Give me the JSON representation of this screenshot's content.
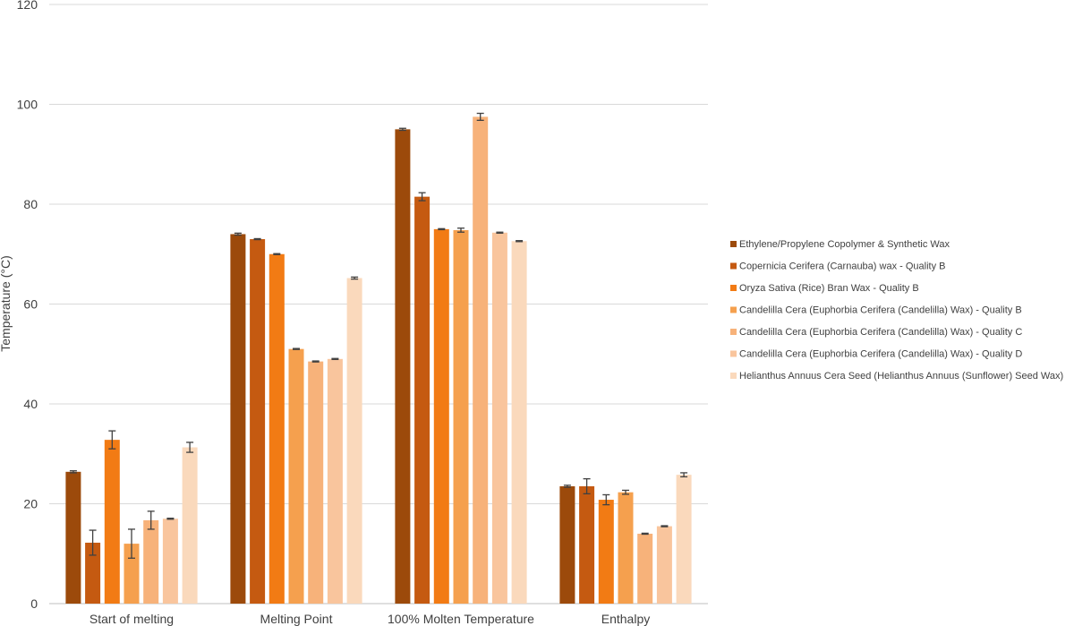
{
  "chart_data": {
    "type": "bar",
    "title": "",
    "xlabel": "",
    "ylabel": "Temperature (°C)",
    "ylim": [
      0,
      120
    ],
    "yticks": [
      0,
      20,
      40,
      60,
      80,
      100,
      120
    ],
    "grid": true,
    "legend_position": "right",
    "error_bars": true,
    "categories": [
      "Start of melting",
      "Melting Point",
      "100% Molten Temperature",
      "Enthalpy"
    ],
    "series": [
      {
        "name": "Ethylene/Propylene Copolymer & Synthetic Wax",
        "color": "#9c4a0b",
        "values": [
          26.4,
          74.0,
          95.0,
          23.5
        ],
        "errors": [
          0.2,
          0.2,
          0.2,
          0.2
        ]
      },
      {
        "name": "Copernicia Cerifera (Carnauba) wax - Quality B",
        "color": "#c55a11",
        "values": [
          12.2,
          73.0,
          81.5,
          23.5
        ],
        "errors": [
          2.5,
          0.1,
          0.8,
          1.5
        ]
      },
      {
        "name": "Oryza Sativa (Rice) Bran Wax - Quality B",
        "color": "#f27b14",
        "values": [
          32.8,
          70.0,
          75.0,
          20.8
        ],
        "errors": [
          1.8,
          0.1,
          0.1,
          1.0
        ]
      },
      {
        "name": "Candelilla Cera (Euphorbia Cerifera (Candelilla) Wax) - Quality B",
        "color": "#f5a04e",
        "values": [
          12.0,
          51.0,
          74.8,
          22.3
        ],
        "errors": [
          2.9,
          0.1,
          0.4,
          0.4
        ]
      },
      {
        "name": "Candelilla Cera (Euphorbia Cerifera (Candelilla) Wax) - Quality C",
        "color": "#f7b27a",
        "values": [
          16.7,
          48.5,
          97.5,
          14.0
        ],
        "errors": [
          1.8,
          0.1,
          0.7,
          0.1
        ]
      },
      {
        "name": "Candelilla Cera (Euphorbia Cerifera (Candelilla) Wax) - Quality D",
        "color": "#f9c59d",
        "values": [
          17.0,
          49.0,
          74.3,
          15.5
        ],
        "errors": [
          0.1,
          0.1,
          0.1,
          0.1
        ]
      },
      {
        "name": "Helianthus Annuus Cera Seed (Helianthus Annuus (Sunflower) Seed Wax)",
        "color": "#fad9bc",
        "values": [
          31.3,
          65.2,
          72.6,
          25.8
        ],
        "errors": [
          1.0,
          0.2,
          0.1,
          0.4
        ]
      }
    ]
  }
}
